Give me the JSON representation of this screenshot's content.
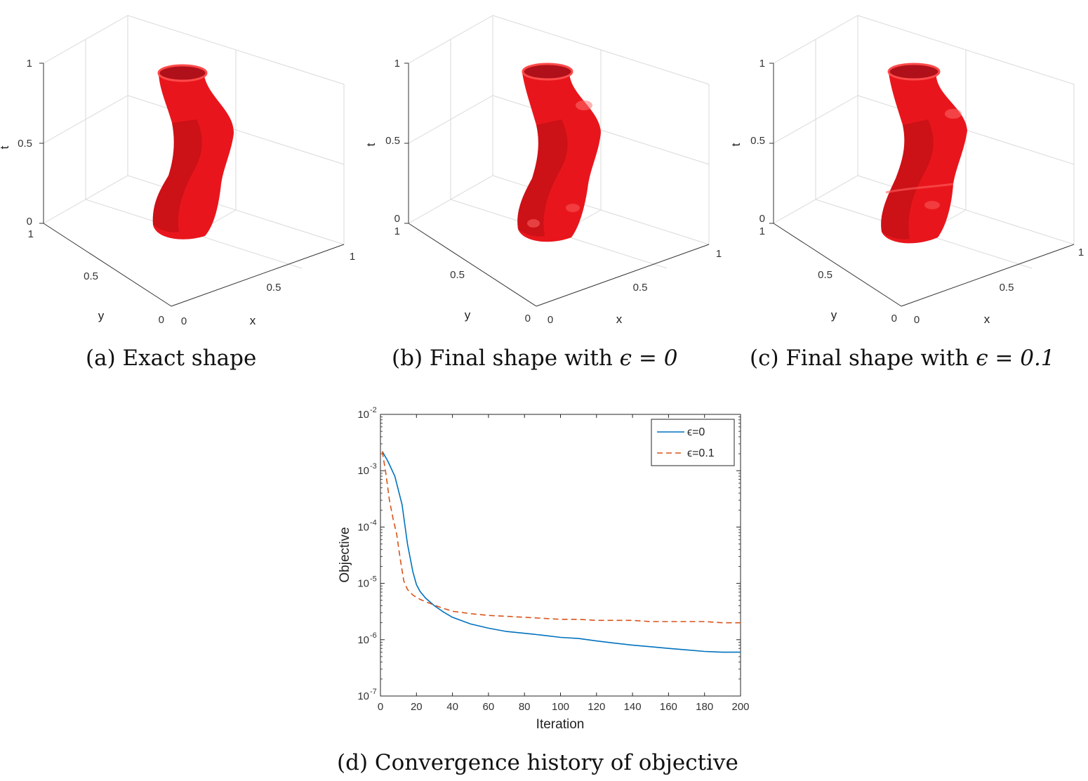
{
  "panels": [
    {
      "id": "a",
      "caption": {
        "mark": "(a)",
        "text": "Exact shape",
        "math": ""
      },
      "axes": {
        "t_ticks": [
          "0",
          "0.5",
          "1"
        ],
        "x_ticks": [
          "0",
          "0.5",
          "1"
        ],
        "y_ticks": [
          "0",
          "0.5",
          "1"
        ],
        "xlabel": "x",
        "ylabel": "y",
        "zlabel": "t"
      },
      "surface_color": "#e8161c"
    },
    {
      "id": "b",
      "caption": {
        "mark": "(b)",
        "text": "Final shape with ",
        "math": "ϵ = 0"
      },
      "axes": {
        "t_ticks": [
          "0",
          "0.5",
          "1"
        ],
        "x_ticks": [
          "0",
          "0.5",
          "1"
        ],
        "y_ticks": [
          "0",
          "0.5",
          "1"
        ],
        "xlabel": "x",
        "ylabel": "y",
        "zlabel": "t"
      },
      "surface_color": "#e8161c"
    },
    {
      "id": "c",
      "caption": {
        "mark": "(c)",
        "text": "Final shape with ",
        "math": "ϵ = 0.1"
      },
      "axes": {
        "t_ticks": [
          "0",
          "0.5",
          "1"
        ],
        "x_ticks": [
          "0",
          "0.5",
          "1"
        ],
        "y_ticks": [
          "0",
          "0.5",
          "1"
        ],
        "xlabel": "x",
        "ylabel": "y",
        "zlabel": "t"
      },
      "surface_color": "#e8161c"
    }
  ],
  "chart_caption": {
    "mark": "(d)",
    "text": "Convergence history of objective"
  },
  "chart_data": {
    "type": "line",
    "xlabel": "Iteration",
    "ylabel": "Objective",
    "xlim": [
      0,
      200
    ],
    "ylim": [
      1e-07,
      0.01
    ],
    "yscale": "log",
    "x_ticks": [
      "0",
      "20",
      "40",
      "60",
      "80",
      "100",
      "120",
      "140",
      "160",
      "180",
      "200"
    ],
    "y_ticks": [
      {
        "base": "10",
        "exp": "-7"
      },
      {
        "base": "10",
        "exp": "-6"
      },
      {
        "base": "10",
        "exp": "-5"
      },
      {
        "base": "10",
        "exp": "-4"
      },
      {
        "base": "10",
        "exp": "-3"
      },
      {
        "base": "10",
        "exp": "-2"
      }
    ],
    "legend_position": "top-right",
    "grid": false,
    "series": [
      {
        "name": "ϵ=0",
        "color": "#0072bd",
        "style": "solid",
        "x": [
          1,
          4,
          8,
          12,
          15,
          18,
          20,
          22,
          25,
          30,
          35,
          40,
          50,
          60,
          70,
          80,
          90,
          100,
          110,
          120,
          130,
          140,
          150,
          160,
          170,
          180,
          190,
          200
        ],
        "y": [
          0.0022,
          0.0015,
          0.0008,
          0.00025,
          5e-05,
          1.6e-05,
          9.5e-06,
          7.2e-06,
          5.5e-06,
          4e-06,
          3.1e-06,
          2.5e-06,
          1.9e-06,
          1.6e-06,
          1.4e-06,
          1.3e-06,
          1.2e-06,
          1.1e-06,
          1.05e-06,
          9.5e-07,
          8.7e-07,
          8e-07,
          7.5e-07,
          7e-07,
          6.6e-07,
          6.2e-07,
          6e-07,
          6e-07
        ]
      },
      {
        "name": "ϵ=0.1",
        "color": "#d95319",
        "style": "dashed",
        "x": [
          1,
          3,
          5,
          7,
          9,
          11,
          13,
          15,
          18,
          22,
          26,
          30,
          35,
          40,
          50,
          60,
          70,
          80,
          90,
          100,
          110,
          120,
          130,
          140,
          150,
          160,
          170,
          180,
          190,
          200
        ],
        "y": [
          0.0022,
          0.0009,
          0.0003,
          0.00014,
          7.5e-05,
          2.7e-05,
          1.1e-05,
          7.8e-06,
          6.2e-06,
          5.2e-06,
          4.6e-06,
          4.1e-06,
          3.6e-06,
          3.2e-06,
          2.9e-06,
          2.7e-06,
          2.6e-06,
          2.5e-06,
          2.4e-06,
          2.3e-06,
          2.3e-06,
          2.2e-06,
          2.2e-06,
          2.2e-06,
          2.1e-06,
          2.1e-06,
          2.1e-06,
          2.1e-06,
          2e-06,
          2e-06
        ]
      }
    ]
  }
}
